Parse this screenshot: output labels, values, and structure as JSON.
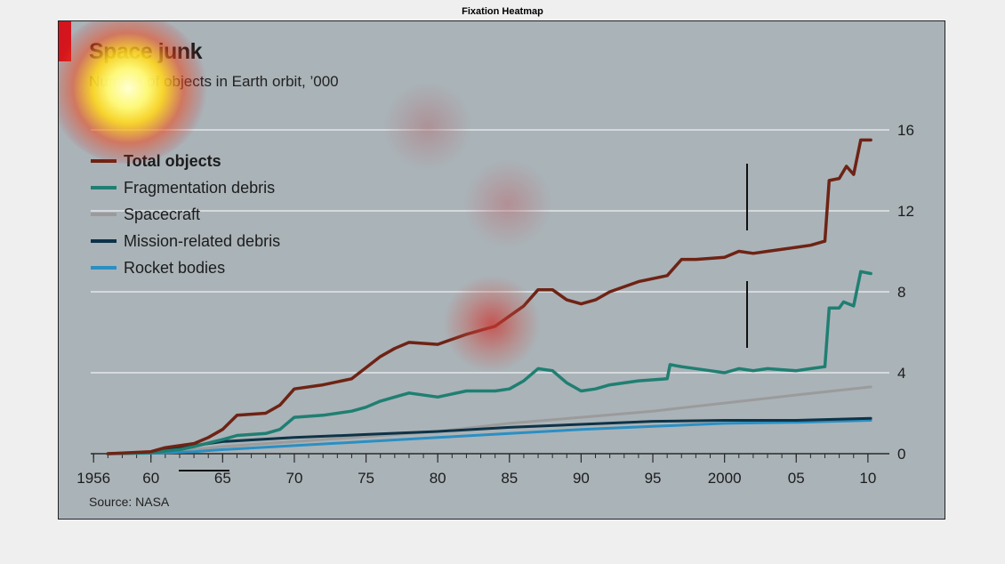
{
  "figure": {
    "title": "Fixation Heatmap"
  },
  "colors": {
    "total": "#6e2314",
    "fragmentation": "#1f7f72",
    "spacecraft": "#9b9b9b",
    "mission": "#0e3347",
    "rocket": "#2a8fc3",
    "accent": "#d4151d"
  },
  "chart_data": {
    "type": "line",
    "title": "Space junk",
    "subtitle": "Number of objects in Earth orbit, ’000",
    "source": "Source: NASA",
    "xlabel": "",
    "ylabel": "",
    "xlim": [
      1955.8,
      2011.0
    ],
    "ylim": [
      0,
      16
    ],
    "x_ticks": [
      1956,
      1960,
      1965,
      1970,
      1975,
      1980,
      1985,
      1990,
      1995,
      2000,
      2005,
      2010
    ],
    "x_tick_labels": [
      "1956",
      "60",
      "65",
      "70",
      "75",
      "80",
      "85",
      "90",
      "95",
      "2000",
      "05",
      "10"
    ],
    "y_ticks": [
      0,
      4,
      8,
      12,
      16
    ],
    "y_tick_labels": [
      "0",
      "4",
      "8",
      "12",
      "16"
    ],
    "grid": true,
    "y_axis_side": "right",
    "legend_position": "top-left",
    "series": [
      {
        "name": "Total objects",
        "color_key": "total",
        "points": [
          [
            1957,
            0
          ],
          [
            1960,
            0.1
          ],
          [
            1961,
            0.3
          ],
          [
            1963,
            0.5
          ],
          [
            1964,
            0.8
          ],
          [
            1965,
            1.2
          ],
          [
            1966,
            1.9
          ],
          [
            1968,
            2.0
          ],
          [
            1969,
            2.4
          ],
          [
            1970,
            3.2
          ],
          [
            1972,
            3.4
          ],
          [
            1974,
            3.7
          ],
          [
            1976,
            4.8
          ],
          [
            1977,
            5.2
          ],
          [
            1978,
            5.5
          ],
          [
            1980,
            5.4
          ],
          [
            1982,
            5.9
          ],
          [
            1984,
            6.3
          ],
          [
            1986,
            7.3
          ],
          [
            1987,
            8.1
          ],
          [
            1988,
            8.1
          ],
          [
            1989,
            7.6
          ],
          [
            1990,
            7.4
          ],
          [
            1991,
            7.6
          ],
          [
            1992,
            8.0
          ],
          [
            1994,
            8.5
          ],
          [
            1996,
            8.8
          ],
          [
            1997,
            9.6
          ],
          [
            1998,
            9.6
          ],
          [
            2000,
            9.7
          ],
          [
            2001,
            10.0
          ],
          [
            2002,
            9.9
          ],
          [
            2003,
            10.0
          ],
          [
            2005,
            10.2
          ],
          [
            2006,
            10.3
          ],
          [
            2007,
            10.5
          ],
          [
            2007.3,
            13.5
          ],
          [
            2008,
            13.6
          ],
          [
            2008.5,
            14.2
          ],
          [
            2009,
            13.8
          ],
          [
            2009.5,
            15.5
          ],
          [
            2010.2,
            15.5
          ]
        ]
      },
      {
        "name": "Fragmentation debris",
        "color_key": "fragmentation",
        "points": [
          [
            1957,
            0
          ],
          [
            1960,
            0.05
          ],
          [
            1962,
            0.2
          ],
          [
            1963,
            0.35
          ],
          [
            1965,
            0.7
          ],
          [
            1966,
            0.9
          ],
          [
            1968,
            1.0
          ],
          [
            1969,
            1.2
          ],
          [
            1970,
            1.8
          ],
          [
            1972,
            1.9
          ],
          [
            1974,
            2.1
          ],
          [
            1975,
            2.3
          ],
          [
            1976,
            2.6
          ],
          [
            1977,
            2.8
          ],
          [
            1978,
            3.0
          ],
          [
            1980,
            2.8
          ],
          [
            1982,
            3.1
          ],
          [
            1984,
            3.1
          ],
          [
            1985,
            3.2
          ],
          [
            1986,
            3.6
          ],
          [
            1987,
            4.2
          ],
          [
            1988,
            4.1
          ],
          [
            1989,
            3.5
          ],
          [
            1990,
            3.1
          ],
          [
            1991,
            3.2
          ],
          [
            1992,
            3.4
          ],
          [
            1994,
            3.6
          ],
          [
            1996,
            3.7
          ],
          [
            1996.2,
            4.4
          ],
          [
            1997,
            4.3
          ],
          [
            1999,
            4.1
          ],
          [
            2000,
            4.0
          ],
          [
            2001,
            4.2
          ],
          [
            2002,
            4.1
          ],
          [
            2003,
            4.2
          ],
          [
            2005,
            4.1
          ],
          [
            2006,
            4.2
          ],
          [
            2007,
            4.3
          ],
          [
            2007.3,
            7.2
          ],
          [
            2008,
            7.2
          ],
          [
            2008.3,
            7.5
          ],
          [
            2009,
            7.3
          ],
          [
            2009.5,
            9.0
          ],
          [
            2010.2,
            8.9
          ]
        ]
      },
      {
        "name": "Spacecraft",
        "color_key": "spacecraft",
        "points": [
          [
            1957,
            0
          ],
          [
            1960,
            0.05
          ],
          [
            1963,
            0.2
          ],
          [
            1965,
            0.35
          ],
          [
            1970,
            0.6
          ],
          [
            1975,
            0.85
          ],
          [
            1980,
            1.1
          ],
          [
            1985,
            1.5
          ],
          [
            1990,
            1.8
          ],
          [
            1995,
            2.1
          ],
          [
            2000,
            2.5
          ],
          [
            2005,
            2.9
          ],
          [
            2010.2,
            3.3
          ]
        ]
      },
      {
        "name": "Mission-related debris",
        "color_key": "mission",
        "points": [
          [
            1957,
            0
          ],
          [
            1960,
            0.05
          ],
          [
            1963,
            0.4
          ],
          [
            1965,
            0.6
          ],
          [
            1970,
            0.8
          ],
          [
            1975,
            0.95
          ],
          [
            1980,
            1.1
          ],
          [
            1985,
            1.3
          ],
          [
            1990,
            1.45
          ],
          [
            1995,
            1.6
          ],
          [
            2000,
            1.65
          ],
          [
            2005,
            1.65
          ],
          [
            2010.2,
            1.75
          ]
        ]
      },
      {
        "name": "Rocket bodies",
        "color_key": "rocket",
        "points": [
          [
            1957,
            0
          ],
          [
            1960,
            0.02
          ],
          [
            1963,
            0.1
          ],
          [
            1965,
            0.2
          ],
          [
            1970,
            0.4
          ],
          [
            1975,
            0.6
          ],
          [
            1980,
            0.8
          ],
          [
            1985,
            1.0
          ],
          [
            1990,
            1.2
          ],
          [
            1995,
            1.35
          ],
          [
            2000,
            1.5
          ],
          [
            2005,
            1.55
          ],
          [
            2010.2,
            1.65
          ]
        ]
      }
    ]
  }
}
